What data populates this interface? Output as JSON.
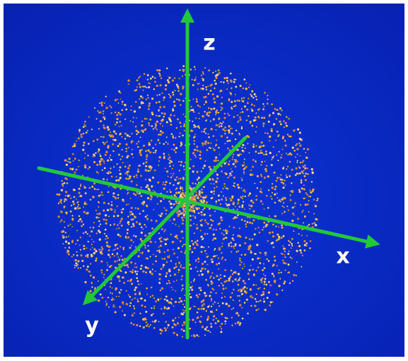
{
  "axis_labels": {
    "z": "z",
    "x": "x",
    "y": "y"
  }
}
